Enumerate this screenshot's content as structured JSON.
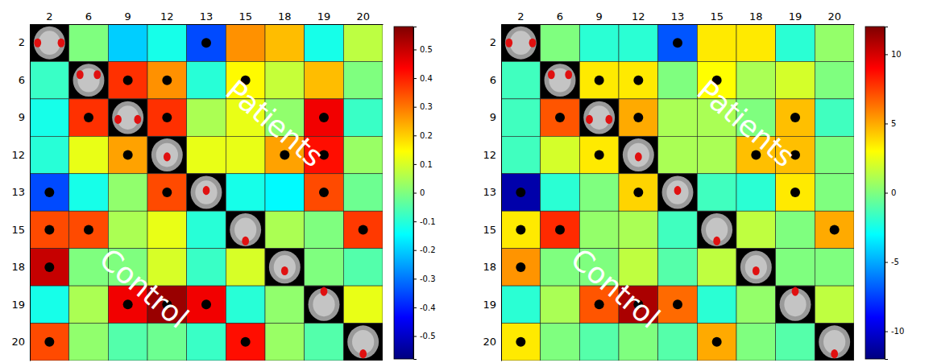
{
  "chart_data": [
    {
      "type": "heatmap",
      "categories": [
        "2",
        "6",
        "9",
        "12",
        "13",
        "15",
        "18",
        "19",
        "20"
      ],
      "values": [
        [
          null,
          0.0,
          -0.2,
          -0.12,
          -0.35,
          0.27,
          0.22,
          -0.12,
          0.07
        ],
        [
          -0.08,
          null,
          0.38,
          0.27,
          -0.1,
          0.15,
          0.08,
          0.22,
          0.0
        ],
        [
          -0.12,
          0.38,
          null,
          0.38,
          0.05,
          0.12,
          0.02,
          0.45,
          -0.08
        ],
        [
          -0.1,
          0.12,
          0.25,
          null,
          0.12,
          0.12,
          0.25,
          0.42,
          0.03
        ],
        [
          -0.35,
          -0.12,
          0.02,
          0.35,
          null,
          -0.12,
          -0.15,
          0.35,
          -0.02
        ],
        [
          0.35,
          0.35,
          0.05,
          0.12,
          -0.1,
          null,
          0.05,
          0.0,
          0.37
        ],
        [
          0.5,
          0.0,
          0.0,
          0.1,
          -0.08,
          0.1,
          null,
          0.0,
          -0.05
        ],
        [
          -0.12,
          0.05,
          0.45,
          0.55,
          0.45,
          -0.1,
          0.02,
          null,
          0.12
        ],
        [
          0.35,
          0.02,
          -0.05,
          -0.02,
          -0.08,
          0.42,
          0.03,
          -0.05,
          null
        ]
      ],
      "significant": [
        [
          null,
          false,
          false,
          false,
          true,
          false,
          false,
          false,
          false
        ],
        [
          false,
          null,
          true,
          true,
          false,
          true,
          false,
          false,
          false
        ],
        [
          false,
          true,
          null,
          true,
          false,
          false,
          false,
          true,
          false
        ],
        [
          false,
          false,
          true,
          null,
          false,
          false,
          true,
          true,
          false
        ],
        [
          true,
          false,
          false,
          true,
          null,
          false,
          false,
          true,
          false
        ],
        [
          true,
          true,
          false,
          false,
          false,
          null,
          false,
          false,
          true
        ],
        [
          true,
          false,
          false,
          false,
          false,
          false,
          null,
          false,
          false
        ],
        [
          false,
          false,
          true,
          true,
          true,
          false,
          false,
          null,
          false
        ],
        [
          true,
          false,
          false,
          false,
          false,
          true,
          false,
          false,
          null
        ]
      ],
      "annotations": [
        "Patients",
        "Control"
      ],
      "colorbar_range": [
        -0.58,
        0.58
      ],
      "colorbar_ticks": [
        0.5,
        0.4,
        0.3,
        0.2,
        0.1,
        0,
        -0.1,
        -0.2,
        -0.3,
        -0.4,
        -0.5
      ]
    },
    {
      "type": "heatmap",
      "categories": [
        "2",
        "6",
        "9",
        "12",
        "13",
        "15",
        "18",
        "19",
        "20"
      ],
      "values": [
        [
          null,
          0.0,
          -2,
          -2,
          -7,
          3.5,
          3.5,
          -2,
          0.5
        ],
        [
          -1.5,
          null,
          3.5,
          3.5,
          0.0,
          3,
          1,
          2,
          0.0
        ],
        [
          -1.5,
          7,
          null,
          5,
          1,
          1,
          0.0,
          4.5,
          -1.5
        ],
        [
          -1.5,
          2,
          3.5,
          null,
          1,
          1,
          4.5,
          4.5,
          0.0
        ],
        [
          -11,
          -2,
          0.0,
          4,
          null,
          -1.5,
          -2,
          3.5,
          0.0
        ],
        [
          3.5,
          8,
          0.5,
          1,
          -1.5,
          null,
          1.5,
          0.0,
          5
        ],
        [
          5.5,
          0.0,
          0.0,
          1.5,
          -1,
          1.5,
          null,
          0.0,
          0.0
        ],
        [
          -2,
          1,
          7,
          11,
          6.5,
          -2,
          0.5,
          null,
          1.5
        ],
        [
          3.5,
          0.0,
          -1,
          0.0,
          -1,
          5,
          0.0,
          -1,
          null
        ]
      ],
      "significant": [
        [
          null,
          false,
          false,
          false,
          true,
          false,
          false,
          false,
          false
        ],
        [
          false,
          null,
          true,
          true,
          false,
          true,
          false,
          false,
          false
        ],
        [
          false,
          true,
          null,
          true,
          false,
          false,
          false,
          true,
          false
        ],
        [
          false,
          false,
          true,
          null,
          false,
          false,
          true,
          true,
          false
        ],
        [
          true,
          false,
          false,
          true,
          null,
          false,
          false,
          true,
          false
        ],
        [
          true,
          true,
          false,
          false,
          false,
          null,
          false,
          false,
          true
        ],
        [
          true,
          false,
          false,
          false,
          false,
          false,
          null,
          false,
          false
        ],
        [
          false,
          false,
          true,
          true,
          true,
          false,
          false,
          null,
          false
        ],
        [
          true,
          false,
          false,
          false,
          false,
          true,
          false,
          false,
          null
        ]
      ],
      "annotations": [
        "Patients",
        "Control"
      ],
      "colorbar_range": [
        -12,
        12
      ],
      "colorbar_ticks": [
        10,
        5,
        0,
        -5,
        -10
      ]
    }
  ]
}
